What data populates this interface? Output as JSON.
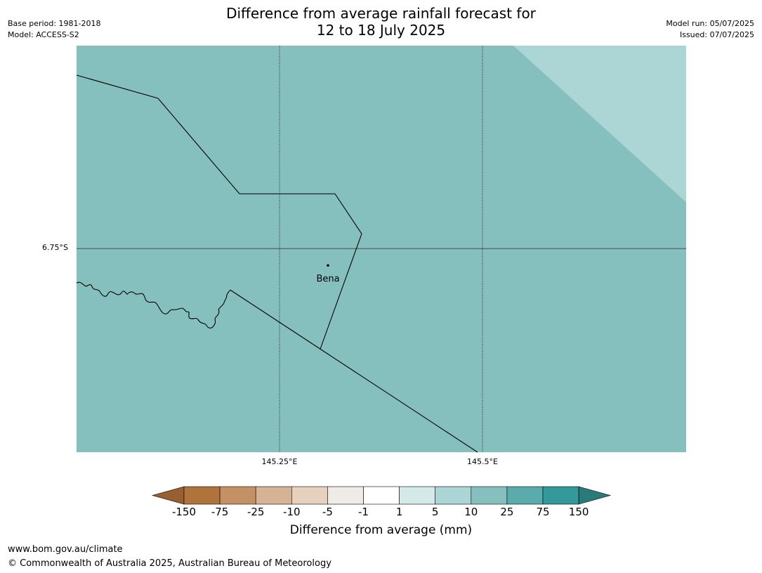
{
  "title": {
    "line1": "Difference from average rainfall forecast for",
    "line2": "12 to 18 July 2025"
  },
  "meta": {
    "base_period": "Base period: 1981-2018",
    "model": "Model: ACCESS-S2",
    "model_run": "Model run: 05/07/2025",
    "issued": "Issued: 07/07/2025"
  },
  "map": {
    "background_color": "#86c0be",
    "upper_category_color": "#acd5d5",
    "grid": {
      "latitude_label": "6.75°S",
      "longitude_labels": [
        "145.25°E",
        "145.5°E"
      ]
    },
    "places": [
      {
        "name": "Bena"
      }
    ]
  },
  "colorbar": {
    "title": "Difference from average (mm)",
    "tick_labels": [
      "-150",
      "-75",
      "-25",
      "-10",
      "-5",
      "-1",
      "1",
      "5",
      "10",
      "25",
      "75",
      "150"
    ],
    "colors": [
      "#9a5f30",
      "#af733b",
      "#c39164",
      "#d5b394",
      "#e6d1bf",
      "#efebe7",
      "#ffffff",
      "#d6e9e9",
      "#acd5d5",
      "#86c0be",
      "#5aabab",
      "#33999a",
      "#2a7a7a"
    ]
  },
  "footer": {
    "url": "www.bom.gov.au/climate",
    "copyright": "© Commonwealth of Australia 2025, Australian Bureau of Meteorology"
  }
}
